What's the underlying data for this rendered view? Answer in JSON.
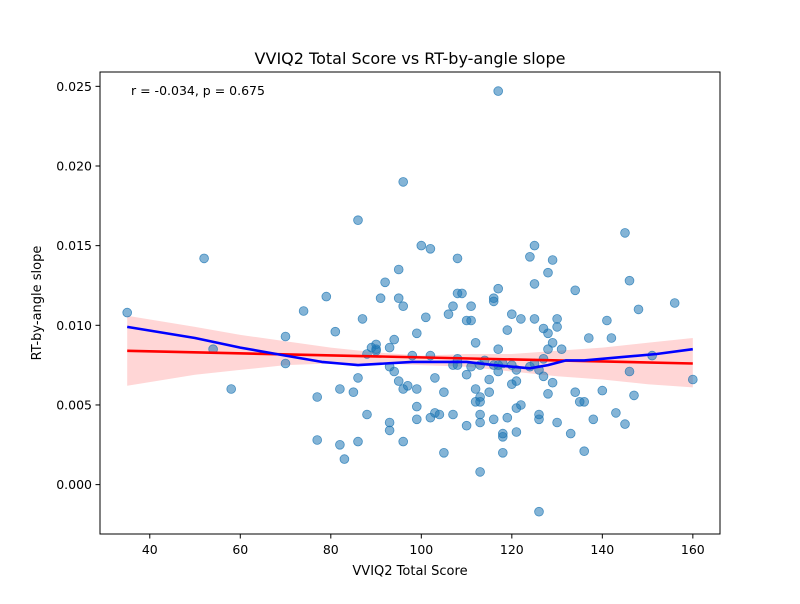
{
  "chart_data": {
    "type": "scatter",
    "title": "VVIQ2 Total Score vs RT-by-angle slope",
    "xlabel": "VVIQ2 Total Score",
    "ylabel": "RT-by-angle slope",
    "annotation": "r = -0.034, p = 0.675",
    "xlim": [
      29,
      166
    ],
    "ylim": [
      -0.0031,
      0.0259
    ],
    "xticks": [
      40,
      60,
      80,
      100,
      120,
      140,
      160
    ],
    "xtick_labels": [
      "40",
      "60",
      "80",
      "100",
      "120",
      "140",
      "160"
    ],
    "yticks": [
      0.0,
      0.005,
      0.01,
      0.015,
      0.02,
      0.025
    ],
    "ytick_labels": [
      "0.000",
      "0.005",
      "0.010",
      "0.015",
      "0.020",
      "0.025"
    ],
    "grid": false,
    "colors": {
      "points": "#1f77b4",
      "regression_line": "#ff0000",
      "confidence_band": "#ff9999",
      "lowess_line": "#0000ff"
    },
    "scatter": {
      "x": [
        35,
        52,
        54,
        58,
        70,
        70,
        74,
        77,
        77,
        79,
        81,
        82,
        82,
        83,
        85,
        86,
        86,
        86,
        87,
        88,
        88,
        89,
        90,
        90,
        90,
        91,
        92,
        93,
        93,
        93,
        93,
        94,
        94,
        95,
        95,
        95,
        96,
        96,
        96,
        96,
        97,
        98,
        99,
        99,
        99,
        99,
        100,
        101,
        102,
        102,
        102,
        103,
        103,
        104,
        105,
        105,
        106,
        107,
        107,
        107,
        108,
        108,
        108,
        108,
        109,
        110,
        110,
        110,
        111,
        111,
        111,
        112,
        112,
        112,
        113,
        113,
        113,
        113,
        113,
        113,
        114,
        115,
        115,
        116,
        116,
        116,
        116,
        117,
        117,
        117,
        117,
        117,
        118,
        118,
        118,
        118,
        119,
        119,
        120,
        120,
        120,
        121,
        121,
        121,
        121,
        122,
        122,
        124,
        124,
        125,
        125,
        125,
        125,
        126,
        126,
        126,
        126,
        127,
        127,
        127,
        128,
        128,
        128,
        128,
        129,
        129,
        129,
        130,
        130,
        130,
        131,
        133,
        134,
        134,
        135,
        136,
        136,
        137,
        138,
        140,
        141,
        142,
        143,
        145,
        145,
        146,
        146,
        147,
        148,
        151,
        156,
        160
      ],
      "y": [
        0.0108,
        0.0142,
        0.0085,
        0.006,
        0.0093,
        0.0076,
        0.0109,
        0.0055,
        0.0028,
        0.0118,
        0.0096,
        0.006,
        0.0025,
        0.0016,
        0.0058,
        0.0166,
        0.0067,
        0.0027,
        0.0104,
        0.0082,
        0.0044,
        0.0086,
        0.0088,
        0.0085,
        0.0084,
        0.0117,
        0.0127,
        0.0086,
        0.0039,
        0.0034,
        0.0074,
        0.0091,
        0.0071,
        0.0135,
        0.0117,
        0.0065,
        0.019,
        0.0112,
        0.006,
        0.0027,
        0.0062,
        0.0081,
        0.0095,
        0.006,
        0.0049,
        0.0041,
        0.015,
        0.0105,
        0.0148,
        0.0081,
        0.0042,
        0.0067,
        0.0045,
        0.0044,
        0.0058,
        0.002,
        0.0107,
        0.0112,
        0.0075,
        0.0044,
        0.0142,
        0.012,
        0.0079,
        0.0075,
        0.012,
        0.0103,
        0.0069,
        0.0037,
        0.0112,
        0.0103,
        0.0074,
        0.0089,
        0.006,
        0.0052,
        0.0055,
        0.0052,
        0.0044,
        0.0075,
        0.0039,
        0.0008,
        0.0078,
        0.0058,
        0.0066,
        0.0117,
        0.0115,
        0.0075,
        0.0041,
        0.0123,
        0.0085,
        0.0071,
        0.0075,
        0.0247,
        0.003,
        0.0032,
        0.002,
        0.0076,
        0.0097,
        0.0042,
        0.0107,
        0.0063,
        0.0075,
        0.0072,
        0.0065,
        0.0048,
        0.0033,
        0.0104,
        0.005,
        0.0143,
        0.0074,
        0.015,
        0.0126,
        0.0104,
        0.0076,
        0.0072,
        0.0041,
        0.0044,
        -0.0017,
        0.0098,
        0.0079,
        0.0068,
        0.0133,
        0.0095,
        0.0085,
        0.0057,
        0.0089,
        0.0141,
        0.0064,
        0.0099,
        0.0104,
        0.0039,
        0.0085,
        0.0032,
        0.0058,
        0.0122,
        0.0052,
        0.0052,
        0.0021,
        0.0092,
        0.0041,
        0.0059,
        0.0103,
        0.0092,
        0.0045,
        0.0158,
        0.0038,
        0.0128,
        0.0071,
        0.0056,
        0.011,
        0.0081,
        0.0114,
        0.0066
      ]
    },
    "regression": {
      "x": [
        35,
        160
      ],
      "y": [
        0.0084,
        0.0076
      ],
      "ci_x": [
        35,
        50,
        60,
        70,
        80,
        90,
        100,
        110,
        120,
        130,
        140,
        150,
        160
      ],
      "ci_lower": [
        0.0062,
        0.0069,
        0.0072,
        0.0075,
        0.0076,
        0.0076,
        0.0075,
        0.0074,
        0.0071,
        0.0068,
        0.0066,
        0.0063,
        0.0061
      ],
      "ci_upper": [
        0.0106,
        0.0099,
        0.0094,
        0.009,
        0.0086,
        0.0083,
        0.0081,
        0.0082,
        0.0082,
        0.0084,
        0.0086,
        0.0089,
        0.0092
      ]
    },
    "lowess": {
      "x": [
        35,
        50,
        60,
        70,
        78,
        82,
        86,
        92,
        98,
        104,
        110,
        116,
        120,
        124,
        128,
        132,
        136,
        144,
        152,
        160
      ],
      "y": [
        0.0099,
        0.0092,
        0.0086,
        0.0081,
        0.0077,
        0.0076,
        0.0075,
        0.0076,
        0.0077,
        0.0077,
        0.0077,
        0.0075,
        0.0074,
        0.0073,
        0.0075,
        0.0078,
        0.0078,
        0.008,
        0.0082,
        0.0085
      ]
    }
  }
}
